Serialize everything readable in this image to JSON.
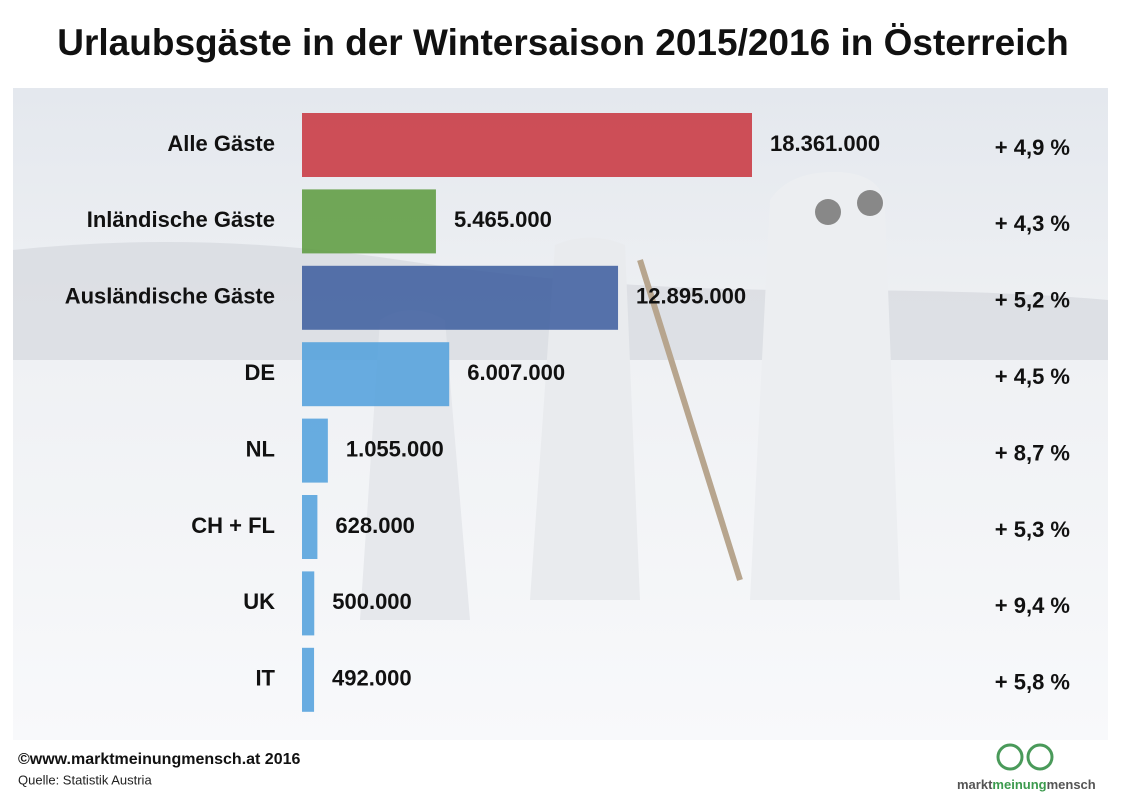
{
  "chart_data": {
    "type": "hbar",
    "title": "Urlaubsgäste in der Wintersaison 2015/2016 in Österreich",
    "categories": [
      "Alle Gäste",
      "Inländische Gäste",
      "Ausländische Gäste",
      "DE",
      "NL",
      "CH + FL",
      "UK",
      "IT"
    ],
    "values": [
      18361000,
      5465000,
      12895000,
      6007000,
      1055000,
      628000,
      500000,
      492000
    ],
    "value_labels": [
      "18.361.000",
      "5.465.000",
      "12.895.000",
      "6.007.000",
      "1.055.000",
      "628.000",
      "500.000",
      "492.000"
    ],
    "colors": [
      "#c8323c",
      "#5a9a3c",
      "#3b5c9e",
      "#4f9fdc",
      "#4f9fdc",
      "#4f9fdc",
      "#4f9fdc",
      "#4f9fdc"
    ],
    "changes": {
      "values": [
        4.9,
        4.3,
        5.2,
        4.5,
        8.7,
        5.3,
        9.4,
        5.8
      ],
      "value_labels": [
        "+ 4,9 %",
        "+ 4,3 %",
        "+ 5,2 %",
        "+ 4,5 %",
        "+ 8,7 %",
        "+ 5,3 %",
        "+ 9,4 %",
        "+ 5,8 %"
      ]
    },
    "footer": "©www.marktmeinungmensch.at 2016",
    "source": "Quelle: Statistik Austria",
    "logo": [
      "markt",
      "meinung",
      "mensch"
    ]
  }
}
